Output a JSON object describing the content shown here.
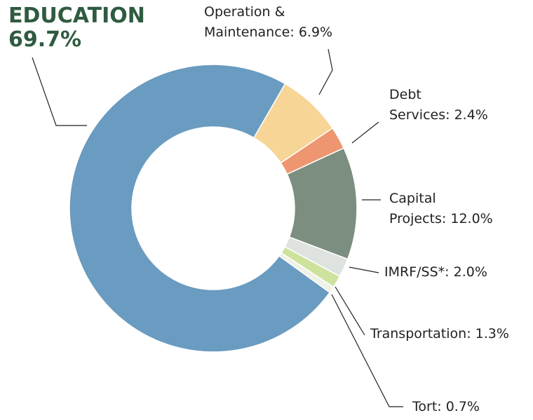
{
  "chart_data": {
    "type": "donut",
    "categories": [
      "EDUCATION",
      "Operation & Maintenance",
      "Debt Services",
      "Capital Projects",
      "IMRF/SS*",
      "Transportation",
      "Tort"
    ],
    "values": [
      69.7,
      6.9,
      2.4,
      12.0,
      2.0,
      1.3,
      0.7
    ],
    "value_labels": [
      "69.7%",
      "6.9%",
      "2.4%",
      "12.0%",
      "2.0%",
      "1.3%",
      "0.7%"
    ],
    "colors": [
      "#6a9bc0",
      "#f7d597",
      "#ee9670",
      "#7b8e7f",
      "#dfe3df",
      "#cde29c",
      "#eef1e4"
    ]
  }
}
